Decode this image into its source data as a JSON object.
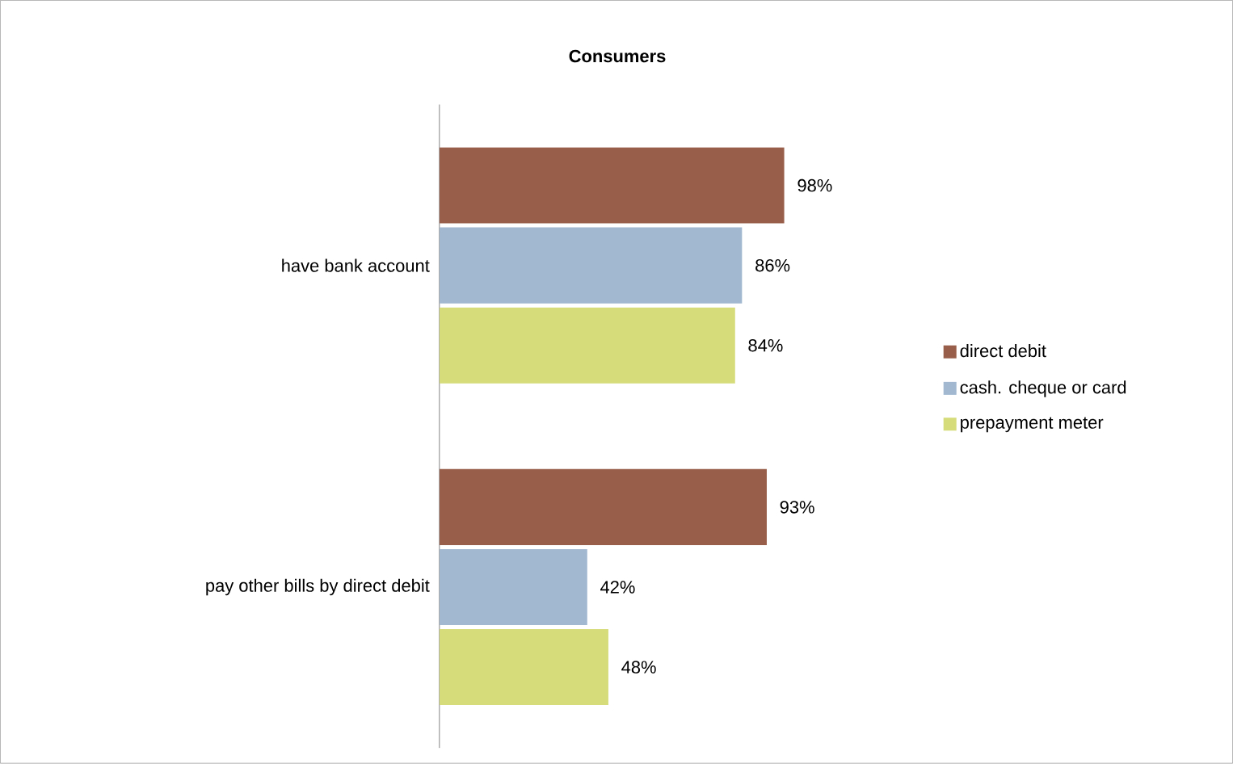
{
  "chart_data": {
    "type": "bar",
    "orientation": "horizontal",
    "title": "Consumers",
    "categories": [
      "have bank account",
      "pay other bills by direct debit"
    ],
    "series": [
      {
        "name": "direct debit",
        "color": "#985e49",
        "values": [
          98,
          93
        ],
        "value_labels": [
          "98%",
          "93%"
        ]
      },
      {
        "name": "cash. cheque or card",
        "color": "#a1b8d0",
        "values": [
          86,
          42
        ],
        "value_labels": [
          "86%",
          "42%"
        ]
      },
      {
        "name": "prepayment meter",
        "color": "#d5dc79",
        "values": [
          84,
          48
        ],
        "value_labels": [
          "84%",
          "48%"
        ]
      }
    ],
    "legend": "right"
  }
}
